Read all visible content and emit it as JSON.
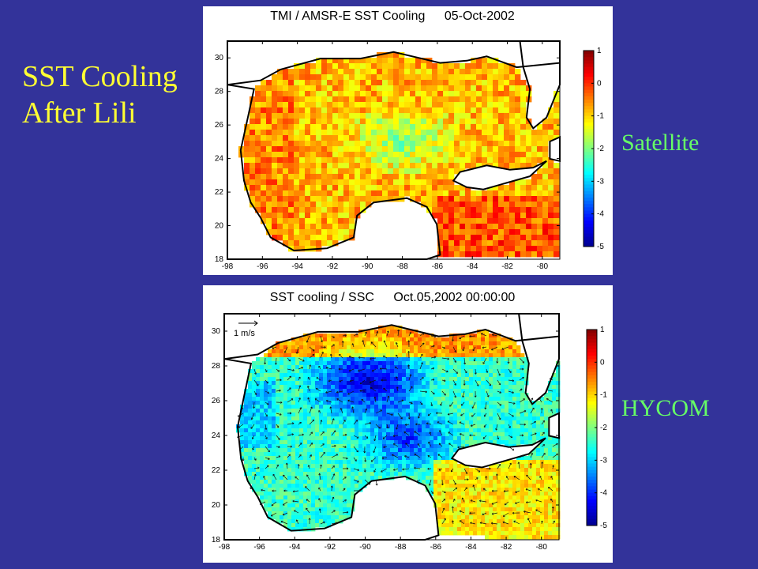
{
  "slide": {
    "title_lines": [
      "SST Cooling",
      "After Lili"
    ],
    "label_satellite": "Satellite",
    "label_hycom": "HYCOM",
    "background_color": "#33339a",
    "title_color": "#ffff33",
    "label_color": "#66ff66"
  },
  "panels": [
    {
      "id": "satellite",
      "title_left": "TMI / AMSR-E SST Cooling",
      "title_right": "05-Oct-2002",
      "x_ticks": [
        "-98",
        "-96",
        "-94",
        "-92",
        "-90",
        "-88",
        "-86",
        "-84",
        "-82",
        "-80"
      ],
      "y_ticks": [
        "18",
        "20",
        "22",
        "24",
        "26",
        "28",
        "30"
      ],
      "colorbar_ticks": [
        "1",
        "0",
        "-1",
        "-2",
        "-3",
        "-4",
        "-5"
      ],
      "colorbar_range": [
        -5,
        1
      ],
      "lon_range": [
        -98,
        -79
      ],
      "lat_range": [
        18,
        31
      ],
      "vectors": false
    },
    {
      "id": "hycom",
      "title_left": "SST cooling / SSC",
      "title_right": "Oct.05,2002 00:00:00",
      "x_ticks": [
        "-98",
        "-96",
        "-94",
        "-92",
        "-90",
        "-88",
        "-86",
        "-84",
        "-82",
        "-80"
      ],
      "y_ticks": [
        "18",
        "20",
        "22",
        "24",
        "26",
        "28",
        "30"
      ],
      "colorbar_ticks": [
        "1",
        "0",
        "-1",
        "-2",
        "-3",
        "-4",
        "-5"
      ],
      "colorbar_range": [
        -5,
        1
      ],
      "lon_range": [
        -98,
        -79
      ],
      "lat_range": [
        18,
        31
      ],
      "vectors": true,
      "vector_scale_label": "1 m/s"
    }
  ],
  "colormap": [
    "#00008f",
    "#0000ff",
    "#0080ff",
    "#00ffff",
    "#80ff80",
    "#ffff00",
    "#ff8000",
    "#ff0000",
    "#800000"
  ]
}
